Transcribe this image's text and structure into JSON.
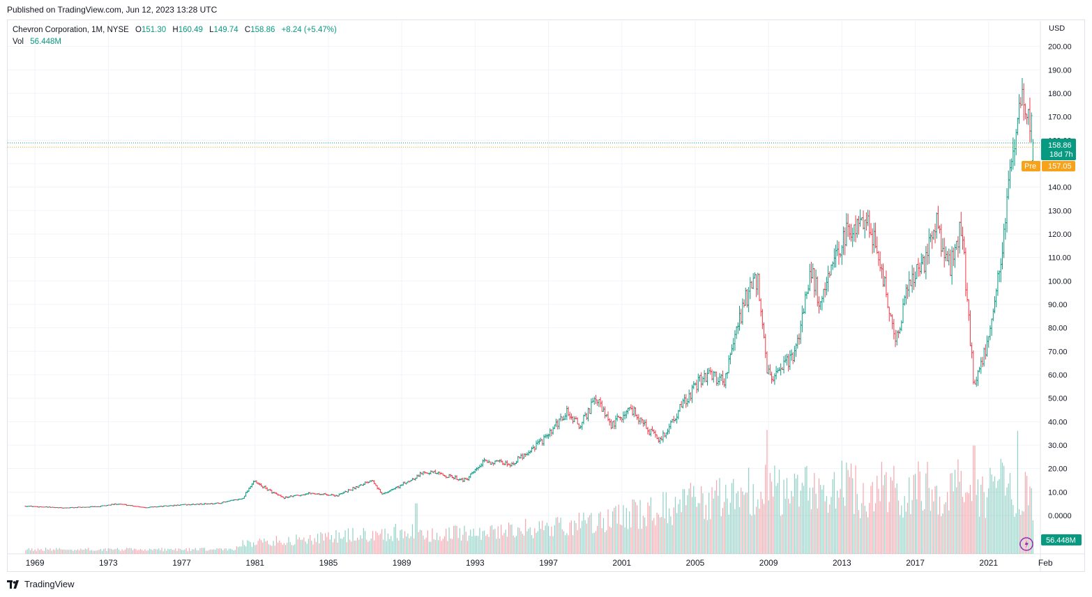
{
  "header": {
    "published": "Published on TradingView.com, Jun 12, 2023 13:28 UTC"
  },
  "legend": {
    "symbol": "Chevron Corporation, 1M, NYSE",
    "open_label": "O",
    "open": "151.30",
    "high_label": "H",
    "high": "160.49",
    "low_label": "L",
    "low": "149.74",
    "close_label": "C",
    "close": "158.86",
    "change": "+8.24 (+5.47%)",
    "vol_label": "Vol",
    "vol": "56.448M"
  },
  "axis": {
    "currency": "USD"
  },
  "tags": {
    "last_price": "158.86",
    "countdown": "18d 7h",
    "pre_label": "Pre",
    "pre_price": "157.05",
    "volume": "56.448M"
  },
  "brand": {
    "name": "TradingView"
  },
  "colors": {
    "up": "#089981",
    "down": "#f23645",
    "pre": "#f7a21b",
    "grid": "#f0f3fa",
    "text": "#131722"
  },
  "chart_data": {
    "type": "ohlc",
    "title": "Chevron Corporation, 1M, NYSE",
    "ylabel": "USD",
    "ylim": [
      -10,
      208
    ],
    "y_ticks": [
      "200.00",
      "190.00",
      "180.00",
      "170.00",
      "160.00",
      "150.00",
      "140.00",
      "130.00",
      "120.00",
      "110.00",
      "100.00",
      "90.00",
      "80.00",
      "70.00",
      "60.00",
      "50.00",
      "40.00",
      "30.00",
      "20.00",
      "10.00",
      "0.0000"
    ],
    "x_ticks": [
      "1969",
      "1973",
      "1977",
      "1981",
      "1985",
      "1989",
      "1993",
      "1997",
      "2001",
      "2005",
      "2009",
      "2013",
      "2017",
      "2021",
      "Feb"
    ],
    "last_close": 158.86,
    "premarket": 157.05,
    "price_path": [
      [
        1968.5,
        4.0
      ],
      [
        1970.5,
        3.2
      ],
      [
        1972.5,
        3.8
      ],
      [
        1973.5,
        5.0
      ],
      [
        1975,
        3.4
      ],
      [
        1977,
        4.5
      ],
      [
        1979,
        5.2
      ],
      [
        1980.3,
        7.2
      ],
      [
        1980.9,
        14.5
      ],
      [
        1982.5,
        7.5
      ],
      [
        1984,
        9.5
      ],
      [
        1985.5,
        8.5
      ],
      [
        1987.4,
        15.5
      ],
      [
        1987.9,
        9.0
      ],
      [
        1989,
        13.0
      ],
      [
        1990.3,
        19.0
      ],
      [
        1992.5,
        15.0
      ],
      [
        1993.5,
        23.0
      ],
      [
        1995,
        22.0
      ],
      [
        1997,
        34.0
      ],
      [
        1998,
        44.0
      ],
      [
        1998.7,
        38.0
      ],
      [
        1999.6,
        50.0
      ],
      [
        2000.4,
        38.0
      ],
      [
        2001.5,
        46.0
      ],
      [
        2002.5,
        36.0
      ],
      [
        2003.1,
        32.0
      ],
      [
        2004.2,
        46.0
      ],
      [
        2005.5,
        60.0
      ],
      [
        2006.6,
        58.0
      ],
      [
        2007.7,
        92.0
      ],
      [
        2008.4,
        100.0
      ],
      [
        2008.9,
        62.0
      ],
      [
        2009.3,
        58.0
      ],
      [
        2010.5,
        70.0
      ],
      [
        2011.3,
        106.0
      ],
      [
        2011.8,
        90.0
      ],
      [
        2013.2,
        120.0
      ],
      [
        2014.4,
        128.0
      ],
      [
        2015.0,
        110.0
      ],
      [
        2015.9,
        75.0
      ],
      [
        2016.8,
        102.0
      ],
      [
        2017.5,
        108.0
      ],
      [
        2018.1,
        126.0
      ],
      [
        2018.9,
        105.0
      ],
      [
        2019.5,
        124.0
      ],
      [
        2020.2,
        56.0
      ],
      [
        2020.9,
        72.0
      ],
      [
        2021.5,
        100.0
      ],
      [
        2022.1,
        140.0
      ],
      [
        2022.8,
        175.0
      ],
      [
        2023.3,
        165.0
      ],
      [
        2023.45,
        158.86
      ]
    ],
    "volume_spikes_M": [
      [
        1989.8,
        55
      ],
      [
        2008.9,
        135
      ],
      [
        2020.2,
        118
      ],
      [
        2022.6,
        134
      ]
    ]
  }
}
